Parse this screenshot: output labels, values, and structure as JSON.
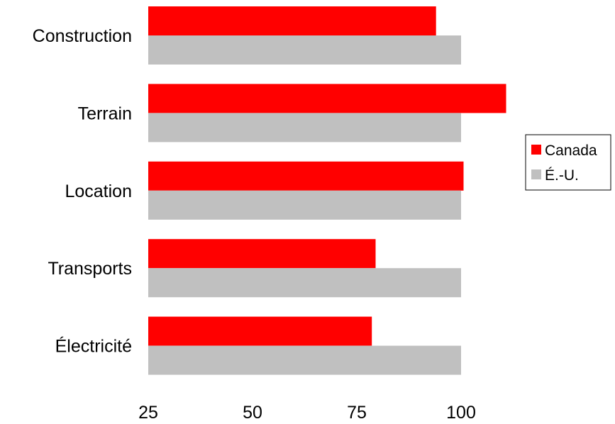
{
  "chart_data": {
    "type": "bar",
    "orientation": "horizontal",
    "title": "",
    "xlabel": "",
    "ylabel": "",
    "categories": [
      "Construction",
      "Terrain",
      "Location",
      "Transports",
      "Électricité"
    ],
    "series": [
      {
        "name": "Canada",
        "color": "#ff0000",
        "values": [
          94.0,
          110.8,
          100.6,
          79.5,
          78.6
        ]
      },
      {
        "name": "É.-U.",
        "color": "#c0c0c0",
        "values": [
          100,
          100,
          100,
          100,
          100
        ]
      }
    ],
    "xlim": [
      25,
      112
    ],
    "xticks": [
      "25",
      "50",
      "75",
      "100"
    ],
    "grid": false,
    "legend_position": "right"
  }
}
